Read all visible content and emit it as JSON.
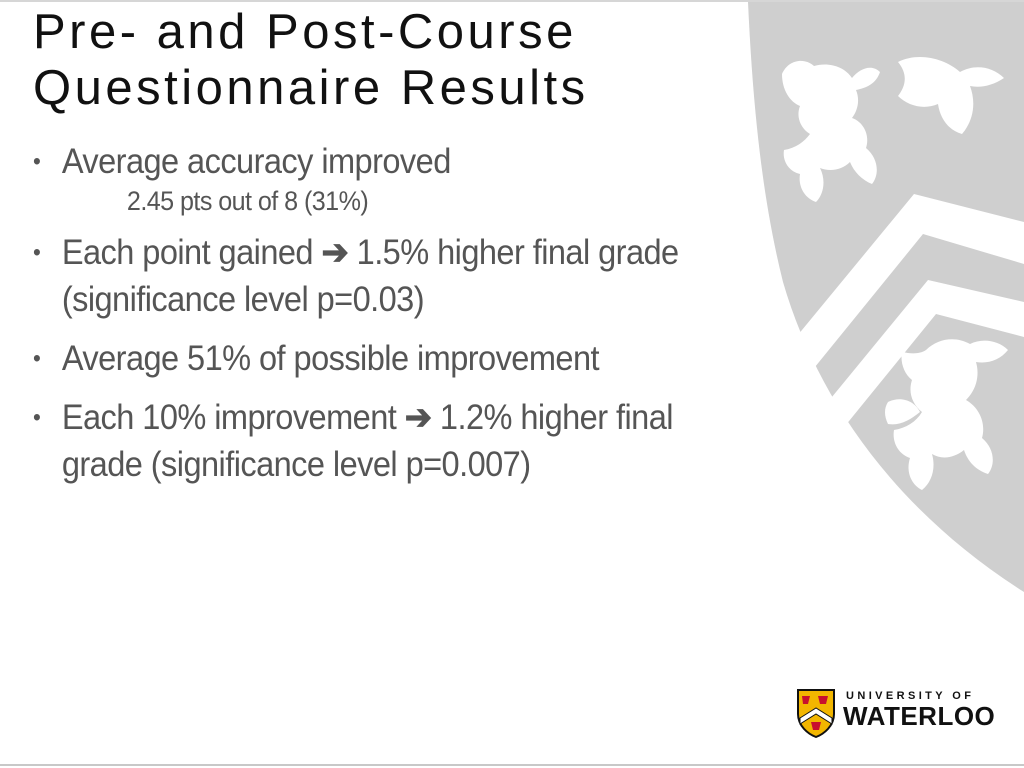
{
  "slide": {
    "title_line1": "Pre- and Post-Course",
    "title_line2": "Questionnaire Results",
    "bullets": [
      {
        "text": "Average accuracy improved",
        "sub": "2.45 pts out of 8 (31%)"
      },
      {
        "text_before": "Each point gained",
        "text_after": "1.5% higher final grade (significance level p=0.03)"
      },
      {
        "text": "Average 51% of possible improvement"
      },
      {
        "text_before": "Each 10% improvement",
        "text_after": "1.2% higher final grade (significance level p=0.007)"
      }
    ],
    "bullet_glyph": "•",
    "arrow_glyph": "➔"
  },
  "logo": {
    "line1": "UNIVERSITY OF",
    "line2": "WATERLOO"
  },
  "icons": {
    "background": "crest-watermark-icon",
    "logo": "waterloo-shield-icon"
  },
  "colors": {
    "title": "#111111",
    "body": "#555555",
    "crest_watermark": "#cfcfcf",
    "logo_gold": "#f2b600",
    "logo_red": "#c8102e"
  }
}
